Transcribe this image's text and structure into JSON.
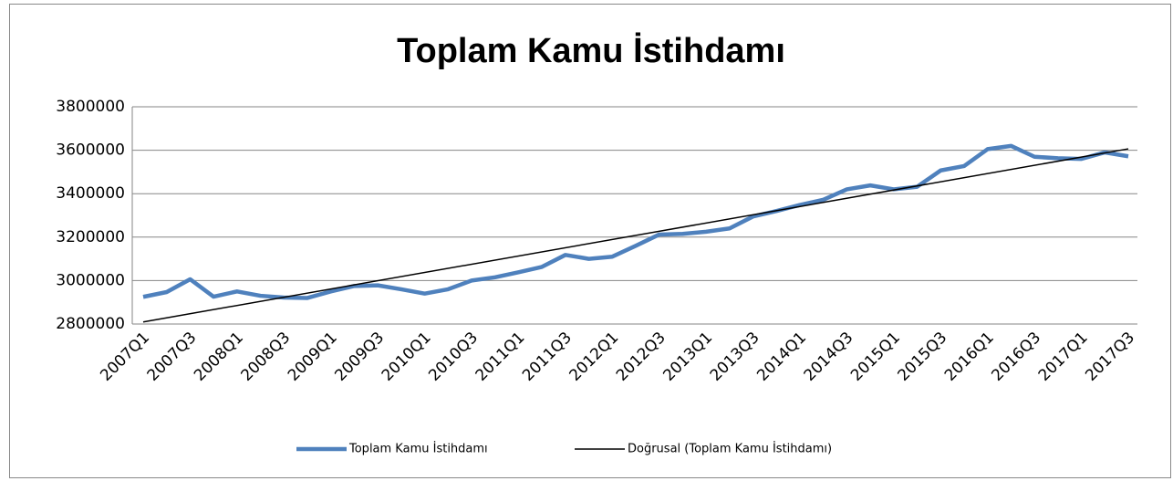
{
  "chart_data": {
    "type": "line",
    "title": "Toplam Kamu İstihdamı",
    "categories": [
      "2007Q1",
      null,
      "2007Q3",
      null,
      "2008Q1",
      null,
      "2008Q3",
      null,
      "2009Q1",
      null,
      "2009Q3",
      null,
      "2010Q1",
      null,
      "2010Q3",
      null,
      "2011Q1",
      null,
      "2011Q3",
      null,
      "2012Q1",
      null,
      "2012Q3",
      null,
      "2013Q1",
      null,
      "2013Q3",
      null,
      "2014Q1",
      null,
      "2014Q3",
      null,
      "2015Q1",
      null,
      "2015Q3",
      null,
      "2016Q1",
      null,
      "2016Q3",
      null,
      "2017Q1",
      null,
      "2017Q3"
    ],
    "series": [
      {
        "name": "Toplam Kamu İstihdamı",
        "color": "#4f81bd",
        "values": [
          2925000,
          2947000,
          3006000,
          2926000,
          2950000,
          2930000,
          2922000,
          2920000,
          2950000,
          2975000,
          2978000,
          2960000,
          2940000,
          2960000,
          3000000,
          3015000,
          3038000,
          3063000,
          3118000,
          3100000,
          3110000,
          3160000,
          3212000,
          3215000,
          3225000,
          3240000,
          3295000,
          3320000,
          3348000,
          3372000,
          3420000,
          3438000,
          3420000,
          3432000,
          3507000,
          3527000,
          3605000,
          3620000,
          3570000,
          3563000,
          3560000,
          3590000,
          3572000
        ]
      },
      {
        "name": "Doğrusal (Toplam Kamu İstihdamı)",
        "color": "#000000",
        "trendline": "linear"
      }
    ],
    "ylim": [
      2800000,
      3800000
    ],
    "yticks": [
      2800000,
      3000000,
      3200000,
      3400000,
      3600000,
      3800000
    ],
    "grid": true,
    "legend": "bottom"
  }
}
